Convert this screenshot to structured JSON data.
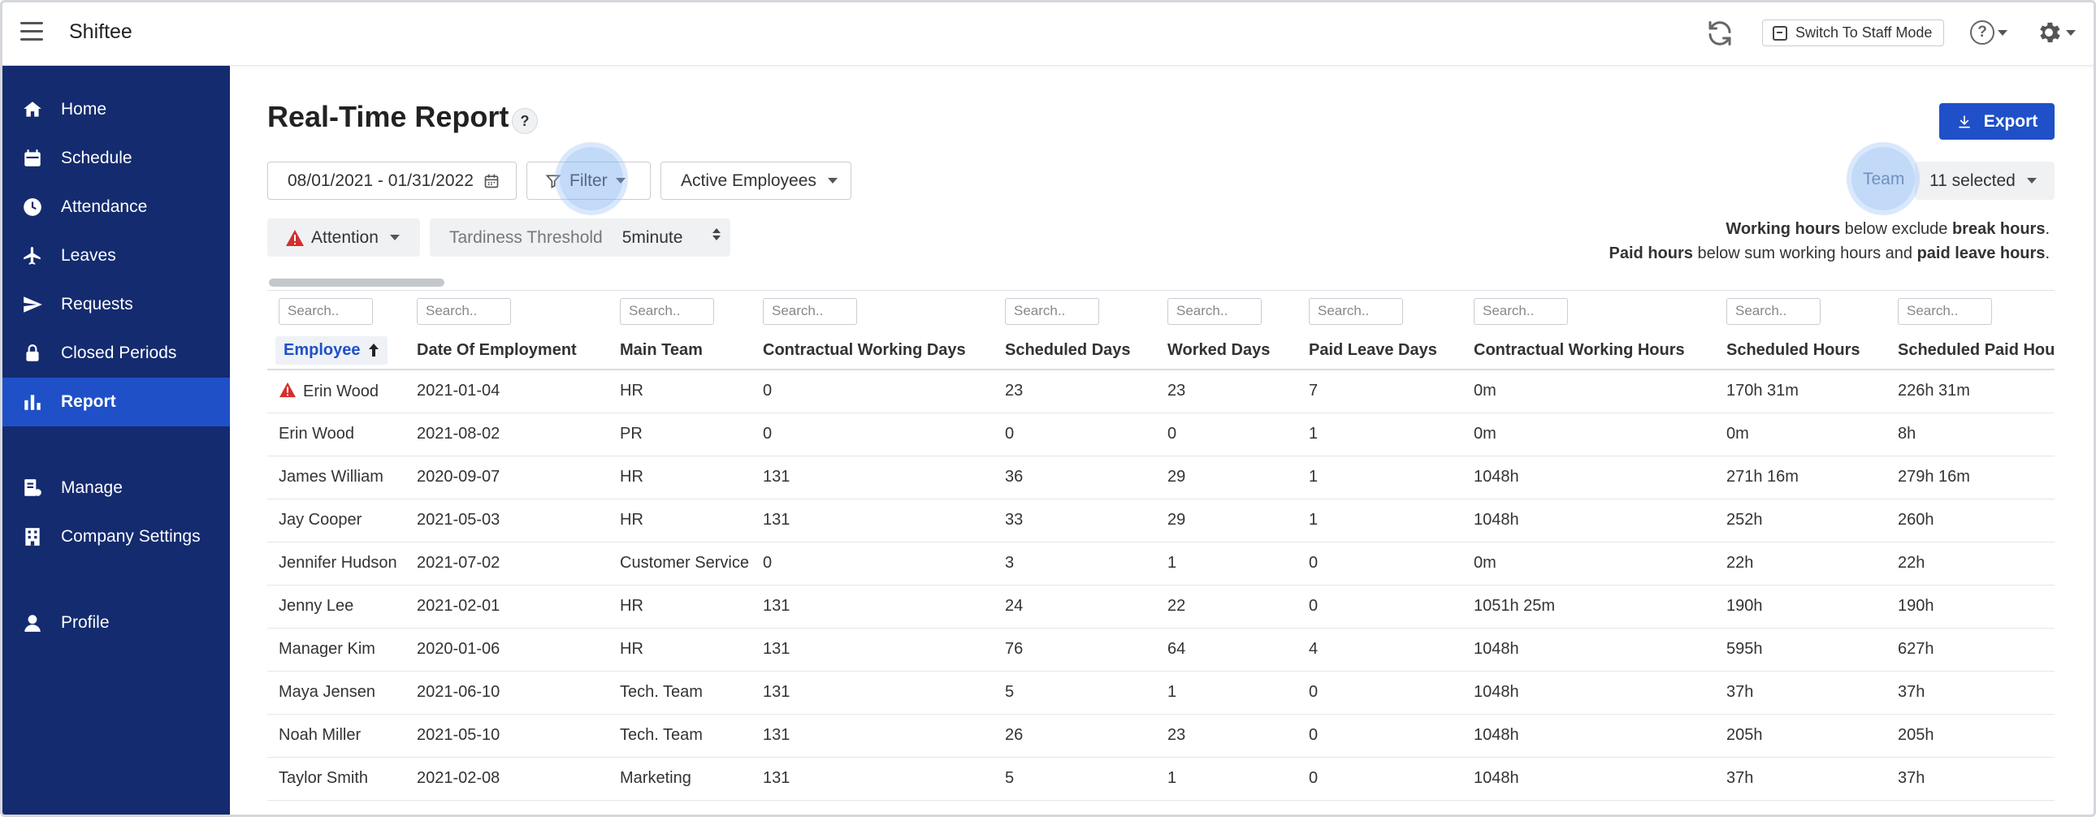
{
  "app": {
    "title": "Shiftee"
  },
  "topbar": {
    "staff_mode_label": "Switch To Staff Mode",
    "help_label": "?"
  },
  "sidebar": {
    "items": [
      {
        "label": "Home",
        "icon": "home-icon",
        "active": false
      },
      {
        "label": "Schedule",
        "icon": "calendar-icon",
        "active": false
      },
      {
        "label": "Attendance",
        "icon": "clock-icon",
        "active": false
      },
      {
        "label": "Leaves",
        "icon": "plane-icon",
        "active": false
      },
      {
        "label": "Requests",
        "icon": "paper-plane-icon",
        "active": false
      },
      {
        "label": "Closed Periods",
        "icon": "lock-icon",
        "active": false
      },
      {
        "label": "Report",
        "icon": "bar-chart-icon",
        "active": true
      },
      {
        "label": "Manage",
        "icon": "manage-icon",
        "active": false
      },
      {
        "label": "Company Settings",
        "icon": "building-icon",
        "active": false
      },
      {
        "label": "Profile",
        "icon": "user-icon",
        "active": false
      }
    ]
  },
  "main": {
    "title": "Real-Time Report",
    "title_help": "?",
    "export_label": "Export",
    "date_range": "08/01/2021 - 01/31/2022",
    "filter_label": "Filter",
    "employee_scope": "Active Employees",
    "team_label": "Team",
    "team_selected": "11 selected",
    "attention_label": "Attention",
    "tardiness_label": "Tardiness Threshold",
    "tardiness_value": "5minute",
    "note1": {
      "b1": "Working hours",
      "t1": " below exclude ",
      "b2": "break hours",
      "t2": "."
    },
    "note2": {
      "b1": "Paid hours",
      "t1": " below sum working hours and ",
      "b2": "paid leave hours",
      "t2": "."
    }
  },
  "table": {
    "search_placeholder": "Search..",
    "columns": [
      "Employee",
      "Date Of Employment",
      "Main Team",
      "Contractual Working Days",
      "Scheduled Days",
      "Worked Days",
      "Paid Leave Days",
      "Contractual Working Hours",
      "Scheduled Hours",
      "Scheduled Paid Hours"
    ],
    "rows": [
      {
        "warning": true,
        "cells": [
          "Erin Wood",
          "2021-01-04",
          "HR",
          "0",
          "23",
          "23",
          "7",
          "0m",
          "170h 31m",
          "226h 31m"
        ]
      },
      {
        "warning": false,
        "cells": [
          "Erin Wood",
          "2021-08-02",
          "PR",
          "0",
          "0",
          "0",
          "1",
          "0m",
          "0m",
          "8h"
        ]
      },
      {
        "warning": false,
        "cells": [
          "James William",
          "2020-09-07",
          "HR",
          "131",
          "36",
          "29",
          "1",
          "1048h",
          "271h 16m",
          "279h 16m"
        ]
      },
      {
        "warning": false,
        "cells": [
          "Jay Cooper",
          "2021-05-03",
          "HR",
          "131",
          "33",
          "29",
          "1",
          "1048h",
          "252h",
          "260h"
        ]
      },
      {
        "warning": false,
        "cells": [
          "Jennifer Hudson",
          "2021-07-02",
          "Customer Service",
          "0",
          "3",
          "1",
          "0",
          "0m",
          "22h",
          "22h"
        ]
      },
      {
        "warning": false,
        "cells": [
          "Jenny Lee",
          "2021-02-01",
          "HR",
          "131",
          "24",
          "22",
          "0",
          "1051h 25m",
          "190h",
          "190h"
        ]
      },
      {
        "warning": false,
        "cells": [
          "Manager Kim",
          "2020-01-06",
          "HR",
          "131",
          "76",
          "64",
          "4",
          "1048h",
          "595h",
          "627h"
        ]
      },
      {
        "warning": false,
        "cells": [
          "Maya Jensen",
          "2021-06-10",
          "Tech. Team",
          "131",
          "5",
          "1",
          "0",
          "1048h",
          "37h",
          "37h"
        ]
      },
      {
        "warning": false,
        "cells": [
          "Noah Miller",
          "2021-05-10",
          "Tech. Team",
          "131",
          "26",
          "23",
          "0",
          "1048h",
          "205h",
          "205h"
        ]
      },
      {
        "warning": false,
        "cells": [
          "Taylor Smith",
          "2021-02-08",
          "Marketing",
          "131",
          "5",
          "1",
          "0",
          "1048h",
          "37h",
          "37h"
        ]
      }
    ]
  },
  "colors": {
    "sidebar": "#142b6f",
    "active": "#1f50c8",
    "warning": "#d32f2f"
  }
}
